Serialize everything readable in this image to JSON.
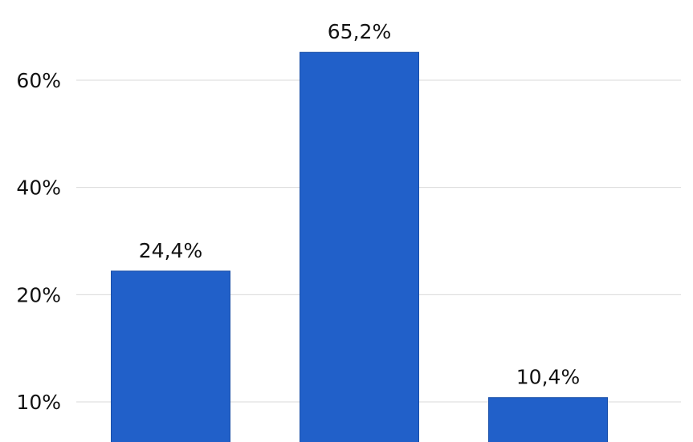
{
  "chart_data": {
    "type": "bar",
    "categories": [
      null,
      null,
      null
    ],
    "values": [
      24.4,
      65.2,
      10.4
    ],
    "value_labels": [
      "24,4%",
      "65,2%",
      "10,4%"
    ],
    "color": "#2160c9",
    "yticks": [
      {
        "value": 10,
        "label": "10%"
      },
      {
        "value": 20,
        "label": "20%"
      },
      {
        "value": 40,
        "label": "40%"
      },
      {
        "value": 60,
        "label": "60%"
      }
    ],
    "grid": true
  }
}
